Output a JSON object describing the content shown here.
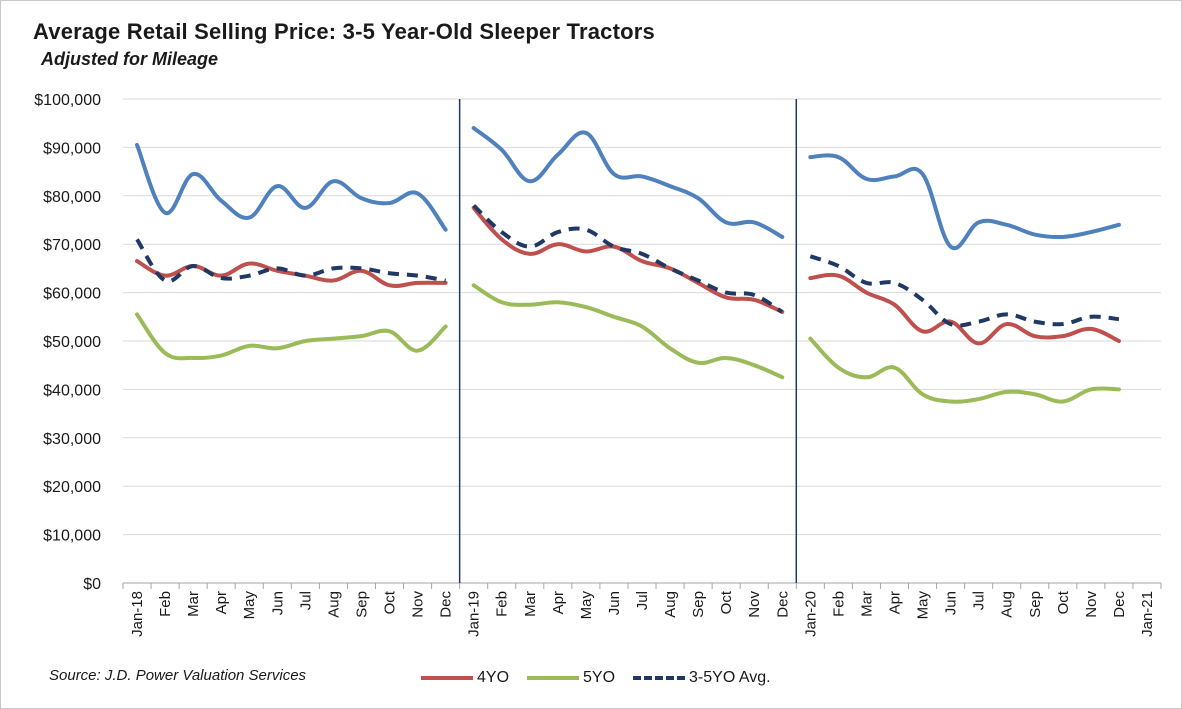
{
  "title": "Average Retail Selling Price: 3-5 Year-Old Sleeper Tractors",
  "subtitle": "Adjusted for Mileage",
  "source": "Source: J.D. Power Valuation Services",
  "colors": {
    "average_unlabeled": "#4f81bd",
    "4yo": "#c0504d",
    "5yo": "#9bbb59",
    "avg_3_5": "#1f3864",
    "divider": "#1f3864",
    "grid": "#d9d9d9"
  },
  "chart_data": {
    "type": "line",
    "title": "Average Retail Selling Price: 3-5 Year-Old Sleeper Tractors",
    "subtitle": "Adjusted for Mileage",
    "xlabel": "",
    "ylabel": "",
    "ylim": [
      0,
      100000
    ],
    "ytick_labels": [
      "$0",
      "$10,000",
      "$20,000",
      "$30,000",
      "$40,000",
      "$50,000",
      "$60,000",
      "$70,000",
      "$80,000",
      "$90,000",
      "$100,000"
    ],
    "ytick_values": [
      0,
      10000,
      20000,
      30000,
      40000,
      50000,
      60000,
      70000,
      80000,
      90000,
      100000
    ],
    "grid": true,
    "legend_position": "bottom",
    "categories": [
      "Jan-18",
      "Feb",
      "Mar",
      "Apr",
      "May",
      "Jun",
      "Jul",
      "Aug",
      "Sep",
      "Oct",
      "Nov",
      "Dec",
      "Jan-19",
      "Feb",
      "Mar",
      "Apr",
      "May",
      "Jun",
      "Jul",
      "Aug",
      "Sep",
      "Oct",
      "Nov",
      "Dec",
      "Jan-20",
      "Feb",
      "Mar",
      "Apr",
      "May",
      "Jun",
      "Jul",
      "Aug",
      "Sep",
      "Oct",
      "Nov",
      "Dec",
      "Jan-21"
    ],
    "year_dividers_after": [
      "Dec",
      "Dec"
    ],
    "series": [
      {
        "key": "avg_unlabeled",
        "name": "",
        "style": "solid",
        "segments": [
          [
            90500,
            76500,
            84500,
            79000,
            75500,
            82000,
            77500,
            83000,
            79500,
            78500,
            80500,
            73000
          ],
          [
            94000,
            89500,
            83000,
            88500,
            93000,
            84500,
            84000,
            82000,
            79500,
            74500,
            74500,
            71500
          ],
          [
            88000,
            88000,
            83500,
            84000,
            84500,
            69500,
            74500,
            74000,
            72000,
            71500,
            72500,
            74000
          ]
        ]
      },
      {
        "key": "4yo",
        "name": "4YO",
        "style": "solid",
        "segments": [
          [
            66500,
            63500,
            65500,
            63500,
            66000,
            64500,
            63500,
            62500,
            64500,
            61500,
            62000,
            62000
          ],
          [
            77500,
            71000,
            68000,
            70000,
            68500,
            69500,
            66500,
            65000,
            62000,
            59000,
            58500,
            56000
          ],
          [
            63000,
            63500,
            60000,
            57500,
            52000,
            54000,
            49500,
            53500,
            51000,
            51000,
            52500,
            50000
          ]
        ]
      },
      {
        "key": "5yo",
        "name": "5YO",
        "style": "solid",
        "segments": [
          [
            55500,
            47500,
            46500,
            47000,
            49000,
            48500,
            50000,
            50500,
            51000,
            52000,
            48000,
            53000
          ],
          [
            61500,
            58000,
            57500,
            58000,
            57000,
            55000,
            53000,
            48500,
            45500,
            46500,
            45000,
            42500
          ],
          [
            50500,
            44500,
            42500,
            44500,
            39000,
            37500,
            38000,
            39500,
            39000,
            37500,
            40000,
            40000
          ]
        ]
      },
      {
        "key": "avg_3_5",
        "name": "3-5YO Avg.",
        "style": "dashed",
        "segments": [
          [
            71000,
            62500,
            65500,
            63000,
            63500,
            65000,
            63500,
            65000,
            65000,
            64000,
            63500,
            62500
          ],
          [
            78000,
            72500,
            69500,
            72500,
            73000,
            69500,
            68000,
            65000,
            62500,
            60000,
            59500,
            56000
          ],
          [
            67500,
            65500,
            62000,
            62000,
            58500,
            53500,
            54000,
            55500,
            54000,
            53500,
            55000,
            54500
          ]
        ]
      }
    ]
  }
}
